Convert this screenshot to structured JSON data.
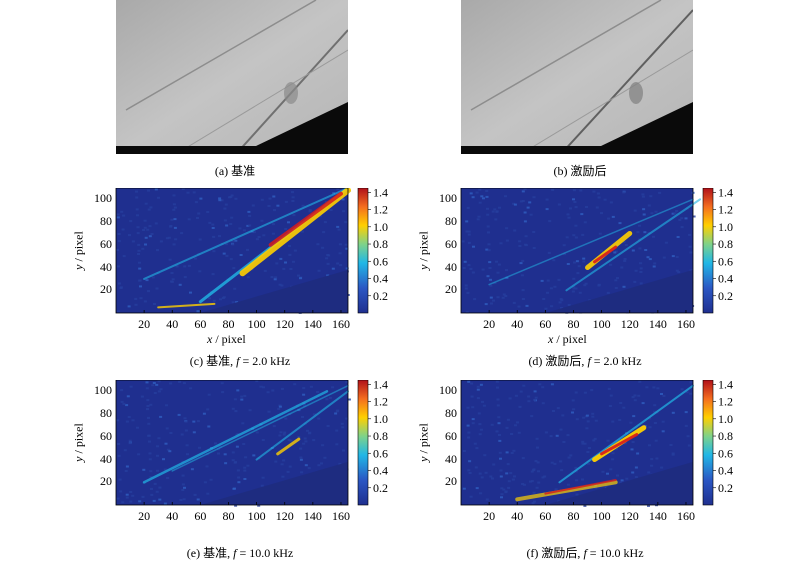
{
  "panels": [
    {
      "id": "a",
      "caption": "(a) 基准"
    },
    {
      "id": "b",
      "caption": "(b) 激励后"
    },
    {
      "id": "c",
      "caption_prefix": "(c) 基准, ",
      "caption_f": "f",
      "caption_suffix": " = 2.0 kHz"
    },
    {
      "id": "d",
      "caption_prefix": "(d) 激励后, ",
      "caption_f": "f",
      "caption_suffix": " = 2.0 kHz"
    },
    {
      "id": "e",
      "caption_prefix": "(e) 基准, ",
      "caption_f": "f",
      "caption_suffix": " = 10.0 kHz"
    },
    {
      "id": "f",
      "caption_prefix": "(f) 激励后, ",
      "caption_f": "f",
      "caption_suffix": " = 10.0 kHz"
    }
  ],
  "axes": {
    "x_label_var": "x",
    "x_label_unit": " / pixel",
    "y_label_var": "y",
    "y_label_unit": " / pixel",
    "x_ticks": [
      "20",
      "40",
      "60",
      "80",
      "100",
      "120",
      "140",
      "160"
    ],
    "y_ticks": [
      "20",
      "40",
      "60",
      "80",
      "100"
    ],
    "colorbar_ticks": [
      "0.2",
      "0.4",
      "0.6",
      "0.8",
      "1.0",
      "1.2",
      "1.4"
    ]
  },
  "colors": {
    "low": "#1f2f8f",
    "mid": "#21b7e6",
    "high": "#ffd000",
    "peak": "#d7191c"
  },
  "chart_data": [
    {
      "type": "heatmap",
      "panel": "c",
      "xlim": [
        0,
        165
      ],
      "ylim": [
        0,
        110
      ],
      "clim": [
        0,
        1.45
      ]
    },
    {
      "type": "heatmap",
      "panel": "d",
      "xlim": [
        0,
        165
      ],
      "ylim": [
        0,
        110
      ],
      "clim": [
        0,
        1.45
      ]
    },
    {
      "type": "heatmap",
      "panel": "e",
      "xlim": [
        0,
        165
      ],
      "ylim": [
        0,
        110
      ],
      "clim": [
        0,
        1.45
      ]
    },
    {
      "type": "heatmap",
      "panel": "f",
      "xlim": [
        0,
        165
      ],
      "ylim": [
        0,
        110
      ],
      "clim": [
        0,
        1.45
      ]
    }
  ]
}
